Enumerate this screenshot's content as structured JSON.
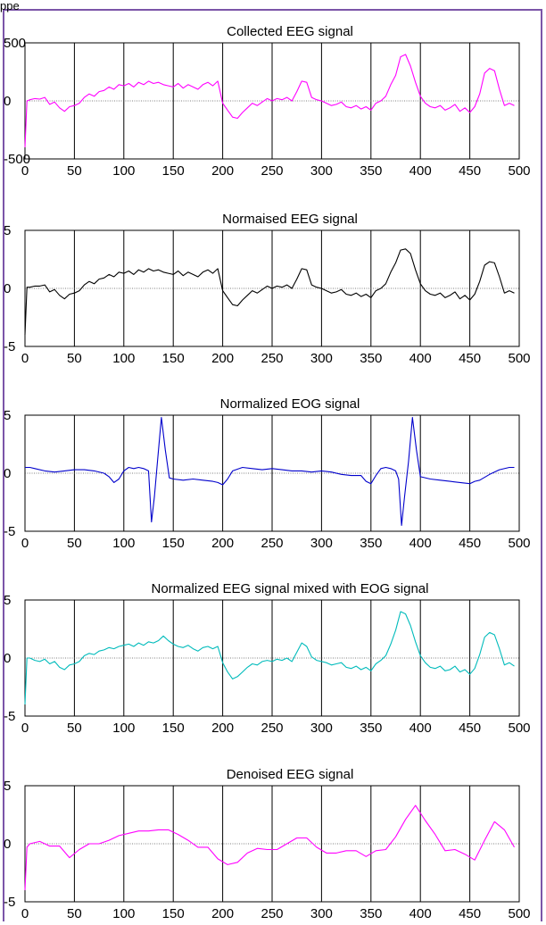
{
  "caption_fragment": "ppe",
  "chart_data": [
    {
      "type": "line",
      "title": "Collected  EEG signal",
      "xlim": [
        0,
        500
      ],
      "ylim": [
        -500,
        500
      ],
      "xticks": [
        0,
        50,
        100,
        150,
        200,
        250,
        300,
        350,
        400,
        450,
        500
      ],
      "yticks": [
        -500,
        0,
        500
      ],
      "xtick_labels": [
        "0",
        "50",
        "100",
        "150",
        "200",
        "250",
        "300",
        "350",
        "400",
        "450",
        "500"
      ],
      "ytick_labels": [
        "-500",
        "0",
        "500"
      ],
      "grid": true,
      "color": "#ff00ff",
      "x": [
        0,
        2,
        5,
        10,
        15,
        20,
        25,
        30,
        35,
        40,
        45,
        50,
        55,
        60,
        65,
        70,
        75,
        80,
        85,
        90,
        95,
        100,
        105,
        110,
        115,
        120,
        125,
        130,
        135,
        140,
        145,
        150,
        155,
        160,
        165,
        170,
        175,
        180,
        185,
        190,
        195,
        200,
        205,
        210,
        215,
        220,
        225,
        230,
        235,
        240,
        245,
        250,
        255,
        260,
        265,
        270,
        275,
        280,
        285,
        290,
        295,
        300,
        305,
        310,
        315,
        320,
        325,
        330,
        335,
        340,
        345,
        350,
        355,
        360,
        365,
        370,
        375,
        380,
        385,
        390,
        395,
        400,
        405,
        410,
        415,
        420,
        425,
        430,
        435,
        440,
        445,
        450,
        455,
        460,
        465,
        470,
        475,
        480,
        485,
        490,
        495
      ],
      "values": [
        -400,
        0,
        10,
        20,
        15,
        30,
        -30,
        -10,
        -60,
        -90,
        -50,
        -40,
        -20,
        30,
        60,
        40,
        80,
        90,
        120,
        100,
        140,
        130,
        150,
        120,
        160,
        140,
        170,
        150,
        160,
        140,
        130,
        120,
        150,
        110,
        140,
        120,
        100,
        140,
        160,
        130,
        170,
        -20,
        -80,
        -140,
        -150,
        -100,
        -60,
        -20,
        -40,
        -10,
        20,
        0,
        20,
        10,
        30,
        0,
        80,
        170,
        160,
        30,
        10,
        0,
        -20,
        -40,
        -30,
        -10,
        -50,
        -60,
        -40,
        -70,
        -50,
        -80,
        -20,
        0,
        40,
        140,
        220,
        380,
        400,
        300,
        160,
        40,
        -20,
        -50,
        -60,
        -40,
        -80,
        -60,
        -30,
        -90,
        -60,
        -100,
        -50,
        60,
        240,
        280,
        260,
        100,
        -40,
        -20,
        -40
      ],
      "xlabel": "",
      "ylabel": ""
    },
    {
      "type": "line",
      "title": "Normaised EEG signal",
      "xlim": [
        0,
        500
      ],
      "ylim": [
        -5,
        5
      ],
      "xticks": [
        0,
        50,
        100,
        150,
        200,
        250,
        300,
        350,
        400,
        450,
        500
      ],
      "yticks": [
        -5,
        0,
        5
      ],
      "xtick_labels": [
        "0",
        "50",
        "100",
        "150",
        "200",
        "250",
        "300",
        "350",
        "400",
        "450",
        "500"
      ],
      "ytick_labels": [
        "-5",
        "0",
        "5"
      ],
      "grid": true,
      "color": "#000000",
      "x": [
        0,
        2,
        5,
        10,
        15,
        20,
        25,
        30,
        35,
        40,
        45,
        50,
        55,
        60,
        65,
        70,
        75,
        80,
        85,
        90,
        95,
        100,
        105,
        110,
        115,
        120,
        125,
        130,
        135,
        140,
        145,
        150,
        155,
        160,
        165,
        170,
        175,
        180,
        185,
        190,
        195,
        200,
        205,
        210,
        215,
        220,
        225,
        230,
        235,
        240,
        245,
        250,
        255,
        260,
        265,
        270,
        275,
        280,
        285,
        290,
        295,
        300,
        305,
        310,
        315,
        320,
        325,
        330,
        335,
        340,
        345,
        350,
        355,
        360,
        365,
        370,
        375,
        380,
        385,
        390,
        395,
        400,
        405,
        410,
        415,
        420,
        425,
        430,
        435,
        440,
        445,
        450,
        455,
        460,
        465,
        470,
        475,
        480,
        485,
        490,
        495
      ],
      "values": [
        -4,
        0.1,
        0.1,
        0.2,
        0.2,
        0.3,
        -0.3,
        -0.1,
        -0.6,
        -0.9,
        -0.5,
        -0.4,
        -0.2,
        0.3,
        0.6,
        0.4,
        0.8,
        0.9,
        1.2,
        1.0,
        1.4,
        1.3,
        1.5,
        1.2,
        1.6,
        1.4,
        1.7,
        1.5,
        1.6,
        1.4,
        1.3,
        1.2,
        1.5,
        1.1,
        1.4,
        1.2,
        1.0,
        1.4,
        1.6,
        1.3,
        1.7,
        -0.2,
        -0.8,
        -1.4,
        -1.5,
        -1.0,
        -0.6,
        -0.2,
        -0.4,
        -0.1,
        0.2,
        0,
        0.2,
        0.1,
        0.3,
        0,
        0.8,
        1.7,
        1.6,
        0.3,
        0.1,
        0,
        -0.2,
        -0.4,
        -0.3,
        -0.1,
        -0.5,
        -0.6,
        -0.4,
        -0.7,
        -0.5,
        -0.8,
        -0.2,
        0,
        0.4,
        1.4,
        2.2,
        3.3,
        3.4,
        3.0,
        1.6,
        0.4,
        -0.2,
        -0.5,
        -0.6,
        -0.4,
        -0.8,
        -0.6,
        -0.3,
        -0.9,
        -0.6,
        -1.0,
        -0.5,
        0.6,
        2.0,
        2.3,
        2.2,
        1.0,
        -0.4,
        -0.2,
        -0.4
      ],
      "xlabel": "",
      "ylabel": ""
    },
    {
      "type": "line",
      "title": "Normalized EOG signal",
      "xlim": [
        0,
        500
      ],
      "ylim": [
        -5,
        5
      ],
      "xticks": [
        0,
        50,
        100,
        150,
        200,
        250,
        300,
        350,
        400,
        450,
        500
      ],
      "yticks": [
        -5,
        0,
        5
      ],
      "xtick_labels": [
        "0",
        "50",
        "100",
        "150",
        "200",
        "250",
        "300",
        "350",
        "400",
        "450",
        "500"
      ],
      "ytick_labels": [
        "-5",
        "0",
        "5"
      ],
      "grid": true,
      "color": "#0000cc",
      "x": [
        0,
        5,
        10,
        20,
        30,
        40,
        50,
        60,
        70,
        80,
        85,
        90,
        95,
        100,
        105,
        110,
        115,
        120,
        125,
        128,
        131,
        134,
        138,
        142,
        146,
        150,
        160,
        170,
        180,
        190,
        195,
        200,
        205,
        210,
        220,
        230,
        240,
        250,
        260,
        270,
        280,
        290,
        300,
        310,
        320,
        330,
        340,
        345,
        350,
        355,
        360,
        365,
        370,
        375,
        378,
        381,
        384,
        388,
        392,
        396,
        400,
        410,
        420,
        430,
        440,
        450,
        455,
        460,
        470,
        480,
        490,
        495
      ],
      "values": [
        0.5,
        0.5,
        0.4,
        0.2,
        0.1,
        0.2,
        0.3,
        0.3,
        0.2,
        0,
        -0.3,
        -0.8,
        -0.5,
        0.2,
        0.5,
        0.4,
        0.5,
        0.4,
        0.2,
        -4.2,
        -2,
        1,
        4.8,
        2,
        -0.4,
        -0.5,
        -0.6,
        -0.5,
        -0.6,
        -0.7,
        -0.8,
        -1,
        -0.5,
        0.2,
        0.5,
        0.4,
        0.3,
        0.4,
        0.3,
        0.2,
        0.2,
        0.1,
        0.2,
        0.1,
        -0.1,
        -0.2,
        -0.2,
        -0.7,
        -0.9,
        -0.2,
        0.4,
        0.5,
        0.4,
        0.2,
        -0.5,
        -4.5,
        -2,
        1,
        4.8,
        2,
        -0.3,
        -0.5,
        -0.6,
        -0.7,
        -0.8,
        -0.9,
        -0.7,
        -0.6,
        -0.1,
        0.3,
        0.5,
        0.5
      ],
      "xlabel": "",
      "ylabel": ""
    },
    {
      "type": "line",
      "title": "Normalized EEG signal mixed with EOG signal",
      "xlim": [
        0,
        500
      ],
      "ylim": [
        -5,
        5
      ],
      "xticks": [
        0,
        50,
        100,
        150,
        200,
        250,
        300,
        350,
        400,
        450,
        500
      ],
      "yticks": [
        -5,
        0,
        5
      ],
      "xtick_labels": [
        "0",
        "50",
        "100",
        "150",
        "200",
        "250",
        "300",
        "350",
        "400",
        "450",
        "500"
      ],
      "ytick_labels": [
        "-5",
        "0",
        "5"
      ],
      "grid": true,
      "color": "#00bbbb",
      "x": [
        0,
        2,
        5,
        10,
        15,
        20,
        25,
        30,
        35,
        40,
        45,
        50,
        55,
        60,
        65,
        70,
        75,
        80,
        85,
        90,
        95,
        100,
        105,
        110,
        115,
        120,
        125,
        130,
        135,
        140,
        145,
        150,
        155,
        160,
        165,
        170,
        175,
        180,
        185,
        190,
        195,
        200,
        205,
        210,
        215,
        220,
        225,
        230,
        235,
        240,
        245,
        250,
        255,
        260,
        265,
        270,
        275,
        280,
        285,
        290,
        295,
        300,
        305,
        310,
        315,
        320,
        325,
        330,
        335,
        340,
        345,
        350,
        355,
        360,
        365,
        370,
        375,
        380,
        385,
        390,
        395,
        400,
        405,
        410,
        415,
        420,
        425,
        430,
        435,
        440,
        445,
        450,
        455,
        460,
        465,
        470,
        475,
        480,
        485,
        490,
        495
      ],
      "values": [
        -4,
        0,
        0,
        -0.2,
        -0.3,
        -0.1,
        -0.5,
        -0.3,
        -0.8,
        -1.0,
        -0.6,
        -0.5,
        -0.3,
        0.2,
        0.4,
        0.3,
        0.6,
        0.7,
        0.9,
        0.8,
        1.0,
        1.1,
        1.2,
        1.0,
        1.3,
        1.1,
        1.4,
        1.3,
        1.5,
        1.9,
        1.5,
        1.2,
        1.0,
        0.9,
        1.1,
        0.8,
        0.6,
        0.9,
        1.0,
        0.8,
        1.0,
        -0.4,
        -1.2,
        -1.8,
        -1.6,
        -1.2,
        -0.8,
        -0.5,
        -0.6,
        -0.3,
        -0.2,
        -0.3,
        -0.1,
        -0.2,
        0,
        -0.3,
        0.5,
        1.3,
        1.0,
        0.1,
        -0.2,
        -0.3,
        -0.4,
        -0.6,
        -0.5,
        -0.4,
        -0.8,
        -0.9,
        -0.7,
        -1.0,
        -0.8,
        -1.1,
        -0.5,
        -0.2,
        0.2,
        1.2,
        2.4,
        4.0,
        3.8,
        2.8,
        1.4,
        0.2,
        -0.4,
        -0.8,
        -0.9,
        -0.7,
        -1.1,
        -1.0,
        -0.7,
        -1.2,
        -1.0,
        -1.4,
        -0.9,
        0.3,
        1.8,
        2.2,
        2.0,
        0.8,
        -0.6,
        -0.4,
        -0.7
      ],
      "xlabel": "",
      "ylabel": ""
    },
    {
      "type": "line",
      "title": "Denoised EEG signal",
      "xlim": [
        0,
        500
      ],
      "ylim": [
        -5,
        5
      ],
      "xticks": [
        0,
        50,
        100,
        150,
        200,
        250,
        300,
        350,
        400,
        450,
        500
      ],
      "yticks": [
        -5,
        0,
        5
      ],
      "xtick_labels": [
        "0",
        "50",
        "100",
        "150",
        "200",
        "250",
        "300",
        "350",
        "400",
        "450",
        "500"
      ],
      "ytick_labels": [
        "-5",
        "0",
        "5"
      ],
      "grid": true,
      "color": "#ff00ff",
      "x": [
        0,
        2,
        5,
        15,
        25,
        35,
        45,
        55,
        65,
        75,
        85,
        95,
        105,
        115,
        125,
        135,
        145,
        155,
        165,
        175,
        185,
        195,
        205,
        215,
        225,
        235,
        245,
        255,
        265,
        275,
        285,
        295,
        305,
        315,
        325,
        335,
        345,
        355,
        365,
        375,
        385,
        395,
        405,
        415,
        425,
        435,
        445,
        455,
        465,
        475,
        485,
        495
      ],
      "values": [
        -4,
        -0.3,
        0,
        0.2,
        -0.2,
        -0.2,
        -1.2,
        -0.5,
        0,
        0,
        0.3,
        0.7,
        0.9,
        1.1,
        1.1,
        1.2,
        1.2,
        0.8,
        0.3,
        -0.3,
        -0.3,
        -1.3,
        -1.8,
        -1.6,
        -0.8,
        -0.4,
        -0.5,
        -0.5,
        0,
        0.5,
        0.5,
        -0.3,
        -0.8,
        -0.8,
        -0.6,
        -0.6,
        -1.1,
        -0.6,
        -0.5,
        0.6,
        2.1,
        3.3,
        2.0,
        0.8,
        -0.6,
        -0.5,
        -0.9,
        -1.4,
        0.3,
        1.9,
        1.2,
        -0.3
      ],
      "xlabel": "",
      "ylabel": ""
    }
  ]
}
